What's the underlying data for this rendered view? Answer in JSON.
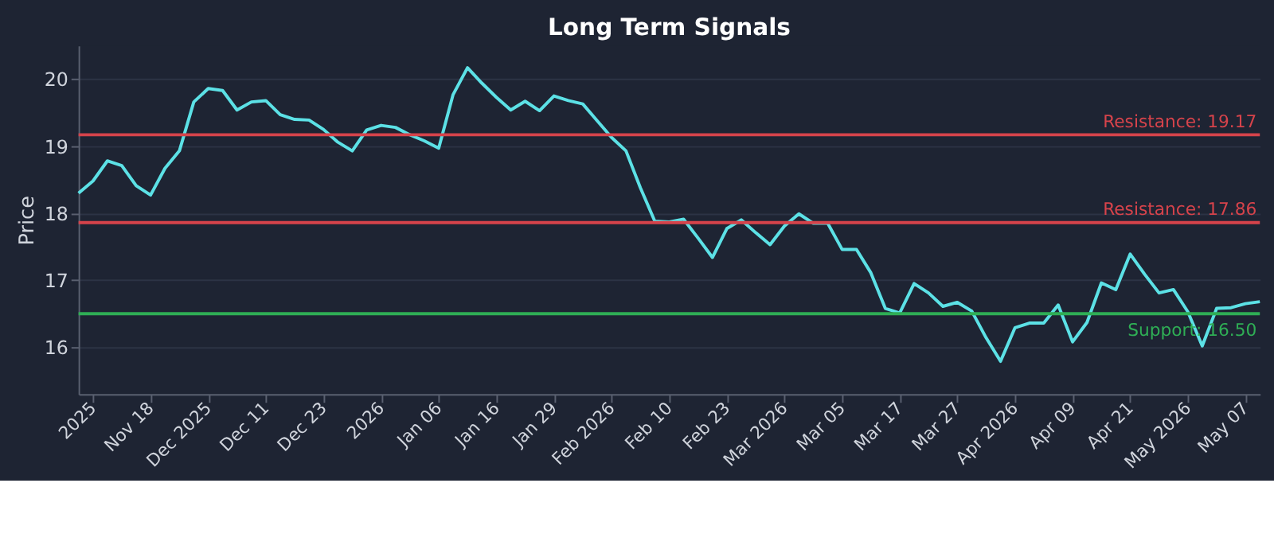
{
  "chart_data": {
    "type": "line",
    "title": "Long Term Signals",
    "ylabel": "Price",
    "categories": [
      null,
      "2025",
      null,
      null,
      null,
      "Nov 18",
      null,
      null,
      null,
      "Dec 2025",
      null,
      null,
      null,
      "Dec 11",
      null,
      null,
      null,
      "Dec 23",
      null,
      null,
      null,
      "2026",
      null,
      null,
      null,
      "Jan 06",
      null,
      null,
      null,
      "Jan 16",
      null,
      null,
      null,
      "Jan 29",
      null,
      null,
      null,
      "Feb 2026",
      null,
      null,
      null,
      "Feb 10",
      null,
      null,
      null,
      "Feb 23",
      null,
      null,
      null,
      "Mar 2026",
      null,
      null,
      null,
      "Mar 05",
      null,
      null,
      null,
      "Mar 17",
      null,
      null,
      null,
      "Mar 27",
      null,
      null,
      null,
      "Apr 2026",
      null,
      null,
      null,
      "Apr 09",
      null,
      null,
      null,
      "Apr 21",
      null,
      null,
      null,
      "May 2026",
      null,
      null,
      null,
      "May 07",
      null
    ],
    "series": [
      {
        "color": "#5ce1e6",
        "values": [
          18.3,
          18.48,
          18.78,
          18.71,
          18.41,
          18.27,
          18.67,
          18.93,
          19.66,
          19.86,
          19.83,
          19.54,
          19.66,
          19.68,
          19.47,
          19.4,
          19.39,
          19.25,
          19.06,
          18.93,
          19.24,
          19.31,
          19.28,
          19.17,
          19.08,
          18.97,
          19.77,
          20.17,
          19.94,
          19.73,
          19.54,
          19.67,
          19.53,
          19.75,
          19.68,
          19.63,
          19.38,
          19.13,
          18.93,
          18.38,
          17.88,
          17.87,
          17.91,
          17.63,
          17.34,
          17.77,
          17.9,
          17.71,
          17.53,
          17.81,
          17.99,
          17.85,
          17.85,
          17.46,
          17.46,
          17.11,
          16.58,
          16.51,
          16.95,
          16.81,
          16.61,
          16.67,
          16.54,
          16.14,
          15.79,
          16.29,
          16.36,
          16.36,
          16.63,
          16.08,
          16.37,
          16.96,
          16.86,
          17.39,
          17.09,
          16.81,
          16.86,
          16.53,
          16.02,
          16.58,
          16.59,
          16.65,
          16.68
        ]
      }
    ],
    "ylim": [
      15.3,
      20.5
    ],
    "yticks": [
      16,
      17,
      18,
      19,
      20
    ],
    "grid": "y",
    "marker": "none",
    "line_style": "solid",
    "ref_lines": [
      {
        "axis": "y",
        "value": 19.17,
        "label": "Resistance: 19.17",
        "color": "#d6434b"
      },
      {
        "axis": "y",
        "value": 17.86,
        "label": "Resistance: 17.86",
        "color": "#d6434b"
      },
      {
        "axis": "y",
        "value": 16.5,
        "label": "Support: 16.50",
        "color": "#2fae55"
      }
    ]
  }
}
